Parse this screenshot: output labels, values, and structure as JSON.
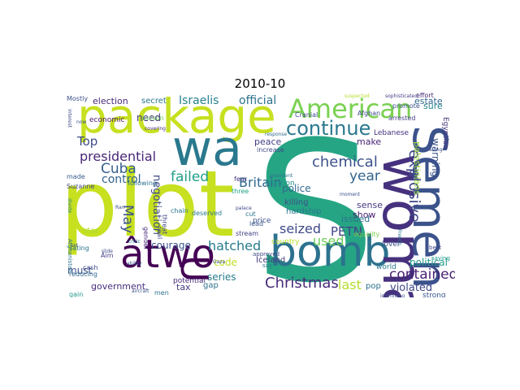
{
  "figure": {
    "title": "2010-10"
  },
  "wordcloud": {
    "words": [
      {
        "text": "plot",
        "color": "#c7e020",
        "vertical": false
      },
      {
        "text": "S",
        "color": "#26a584",
        "vertical": false
      },
      {
        "text": "package",
        "color": "#c7e020",
        "vertical": false
      },
      {
        "text": "bomb",
        "color": "#2c728e",
        "vertical": false
      },
      {
        "text": "woman",
        "color": "#46317e",
        "vertical": true
      },
      {
        "text": "Semen",
        "color": "#3b528b",
        "vertical": true
      },
      {
        "text": "âtwo",
        "color": "#440154",
        "vertical": false
      },
      {
        "text": "wa",
        "color": "#2a788e",
        "vertical": false
      },
      {
        "text": "U",
        "color": "#440154",
        "vertical": true
      },
      {
        "text": "American",
        "color": "#7ad151",
        "vertical": false
      },
      {
        "text": "continue",
        "color": "#2a788e",
        "vertical": false
      },
      {
        "text": "Christmas",
        "color": "#472c7a",
        "vertical": false
      },
      {
        "text": "presidential",
        "color": "#482677",
        "vertical": false
      },
      {
        "text": "chemical",
        "color": "#3b528b",
        "vertical": false
      },
      {
        "text": "explosive",
        "color": "#3f4788",
        "vertical": true
      },
      {
        "text": "Britain",
        "color": "#31688e",
        "vertical": false
      },
      {
        "text": "hatched",
        "color": "#287c8e",
        "vertical": false
      },
      {
        "text": "seized",
        "color": "#3e4989",
        "vertical": false
      },
      {
        "text": "contained",
        "color": "#482173",
        "vertical": false
      },
      {
        "text": "failed",
        "color": "#1f9e89",
        "vertical": false
      },
      {
        "text": "Cuba",
        "color": "#35608d",
        "vertical": false
      },
      {
        "text": "year",
        "color": "#32658e",
        "vertical": false
      },
      {
        "text": "used",
        "color": "#6ccd5a",
        "vertical": false
      },
      {
        "text": "PETN",
        "color": "#414487",
        "vertical": false
      },
      {
        "text": "last",
        "color": "#b5de2b",
        "vertical": false
      },
      {
        "text": "Israelis",
        "color": "#26828e",
        "vertical": false
      },
      {
        "text": "official",
        "color": "#2c728e",
        "vertical": false
      },
      {
        "text": "election",
        "color": "#482878",
        "vertical": false
      },
      {
        "text": "secret",
        "color": "#2a788e",
        "vertical": false
      },
      {
        "text": "May",
        "color": "#3b528b",
        "vertical": true
      },
      {
        "text": "control",
        "color": "#33638d",
        "vertical": false
      },
      {
        "text": "Top",
        "color": "#3e4a89",
        "vertical": false
      },
      {
        "text": "police",
        "color": "#31688e",
        "vertical": false
      },
      {
        "text": "make",
        "color": "#482475",
        "vertical": false
      },
      {
        "text": "sense",
        "color": "#443983",
        "vertical": false
      },
      {
        "text": "show",
        "color": "#481f70",
        "vertical": false
      },
      {
        "text": "issued",
        "color": "#2c718e",
        "vertical": false
      },
      {
        "text": "political",
        "color": "#1e9b8a",
        "vertical": false
      },
      {
        "text": "violated",
        "color": "#3f4889",
        "vertical": false
      },
      {
        "text": "government",
        "color": "#472d7b",
        "vertical": false
      },
      {
        "text": "peace",
        "color": "#424086",
        "vertical": false
      },
      {
        "text": "negotiation",
        "color": "#3e4989",
        "vertical": true
      },
      {
        "text": "courage",
        "color": "#3b528b",
        "vertical": false
      },
      {
        "text": "code",
        "color": "#c2df23",
        "vertical": false
      },
      {
        "text": "series",
        "color": "#287d8e",
        "vertical": false
      },
      {
        "text": "estate",
        "color": "#31688e",
        "vertical": false
      },
      {
        "text": "sure",
        "color": "#26828e",
        "vertical": false
      },
      {
        "text": "warning",
        "color": "#3b528b",
        "vertical": true
      },
      {
        "text": "Egyptian",
        "color": "#46337f",
        "vertical": true
      },
      {
        "text": "palestinians",
        "color": "#9fda3a",
        "vertical": true
      },
      {
        "text": "need",
        "color": "#453781",
        "vertical": false
      },
      {
        "text": "economic",
        "color": "#481467",
        "vertical": false
      },
      {
        "text": "reaction",
        "color": "#21918c",
        "vertical": false
      },
      {
        "text": "killing",
        "color": "#3c4f8a",
        "vertical": false
      },
      {
        "text": "hardship",
        "color": "#2a788e",
        "vertical": false
      },
      {
        "text": "Iceland",
        "color": "#443983",
        "vertical": false
      },
      {
        "text": "must",
        "color": "#3b528b",
        "vertical": false
      },
      {
        "text": "tax",
        "color": "#433e85",
        "vertical": false
      },
      {
        "text": "gap",
        "color": "#2d708e",
        "vertical": false
      },
      {
        "text": "pop",
        "color": "#2c728e",
        "vertical": false
      },
      {
        "text": "strong",
        "color": "#39568c",
        "vertical": false
      },
      {
        "text": "lover",
        "color": "#3d4e8a",
        "vertical": false
      },
      {
        "text": "world",
        "color": "#2a768e",
        "vertical": false
      },
      {
        "text": "country",
        "color": "#b8de29",
        "vertical": false
      },
      {
        "text": "price",
        "color": "#3b528b",
        "vertical": false
      },
      {
        "text": "Lebanese",
        "color": "#46307e",
        "vertical": false
      },
      {
        "text": "increase",
        "color": "#3e4a89",
        "vertical": false
      },
      {
        "text": "fear",
        "color": "#453781",
        "vertical": false
      },
      {
        "text": "three",
        "color": "#20a386",
        "vertical": false
      },
      {
        "text": "chain",
        "color": "#2a788e",
        "vertical": false
      },
      {
        "text": "stream",
        "color": "#433e85",
        "vertical": false
      },
      {
        "text": "potential",
        "color": "#472a7a",
        "vertical": false
      },
      {
        "text": "men",
        "color": "#2c728e",
        "vertical": false
      },
      {
        "text": "star",
        "color": "#aadc32",
        "vertical": false
      },
      {
        "text": "made",
        "color": "#365c8d",
        "vertical": false
      },
      {
        "text": "Suzanne",
        "color": "#404588",
        "vertical": false
      },
      {
        "text": "following",
        "color": "#2c728e",
        "vertical": false
      },
      {
        "text": "Mostly",
        "color": "#3b528b",
        "vertical": false
      },
      {
        "text": "tucson",
        "color": "#6ece58",
        "vertical": false
      },
      {
        "text": "Afghan",
        "color": "#3e4989",
        "vertical": false
      },
      {
        "text": "arrested",
        "color": "#433e85",
        "vertical": false
      },
      {
        "text": "Cranial",
        "color": "#3e4a89",
        "vertical": false
      },
      {
        "text": "effort",
        "color": "#482777",
        "vertical": false
      },
      {
        "text": "promote",
        "color": "#3b528b",
        "vertical": false
      },
      {
        "text": "cut",
        "color": "#2a788e",
        "vertical": false
      },
      {
        "text": "lead",
        "color": "#39558c",
        "vertical": false
      },
      {
        "text": "gain",
        "color": "#1f988b",
        "vertical": false
      },
      {
        "text": "reducing",
        "color": "#31688e",
        "vertical": false
      },
      {
        "text": "cash",
        "color": "#3e4989",
        "vertical": false
      },
      {
        "text": "Aim",
        "color": "#433e85",
        "vertical": false
      },
      {
        "text": "rating",
        "color": "#2c728e",
        "vertical": false
      },
      {
        "text": "set",
        "color": "#3b528b",
        "vertical": false
      },
      {
        "text": "deserved",
        "color": "#2a788e",
        "vertical": false
      },
      {
        "text": "threat",
        "color": "#414487",
        "vertical": true
      },
      {
        "text": "real",
        "color": "#3e4989",
        "vertical": true
      },
      {
        "text": "gender",
        "color": "#482878",
        "vertical": true
      },
      {
        "text": "equality",
        "color": "#7ad151",
        "vertical": false
      },
      {
        "text": "say",
        "color": "#2a788e",
        "vertical": false
      },
      {
        "text": "aircraft",
        "color": "#3b528b",
        "vertical": false
      },
      {
        "text": "Afghanistan",
        "color": "#2c728e",
        "vertical": true
      },
      {
        "text": "divide",
        "color": "#26828e",
        "vertical": true
      },
      {
        "text": "interest",
        "color": "#3e4a89",
        "vertical": true
      },
      {
        "text": "sophisticated",
        "color": "#433e85",
        "vertical": false
      },
      {
        "text": "suspected",
        "color": "#b5de2b",
        "vertical": false
      },
      {
        "text": "now",
        "color": "#3b528b",
        "vertical": false
      },
      {
        "text": "covering",
        "color": "#482878",
        "vertical": false
      },
      {
        "text": "Ran",
        "color": "#3b528b",
        "vertical": false
      },
      {
        "text": "critic",
        "color": "#2a788e",
        "vertical": false
      },
      {
        "text": "slide",
        "color": "#3e4989",
        "vertical": false
      },
      {
        "text": "ability",
        "color": "#3b528b",
        "vertical": false
      },
      {
        "text": "president",
        "color": "#2c728e",
        "vertical": false
      },
      {
        "text": "approved",
        "color": "#3e4a89",
        "vertical": false
      },
      {
        "text": "moment",
        "color": "#3b528b",
        "vertical": false
      },
      {
        "text": "French",
        "color": "#2a788e",
        "vertical": true
      },
      {
        "text": "best",
        "color": "#3e4989",
        "vertical": false
      },
      {
        "text": "saying",
        "color": "#1f988b",
        "vertical": false
      },
      {
        "text": "improving",
        "color": "#3b528b",
        "vertical": false
      },
      {
        "text": "palace",
        "color": "#3e4989",
        "vertical": false
      },
      {
        "text": "failing",
        "color": "#3b528b",
        "vertical": false
      },
      {
        "text": "response",
        "color": "#31688e",
        "vertical": false
      },
      {
        "text": "Gaza",
        "color": "#3b528b",
        "vertical": false
      }
    ]
  }
}
